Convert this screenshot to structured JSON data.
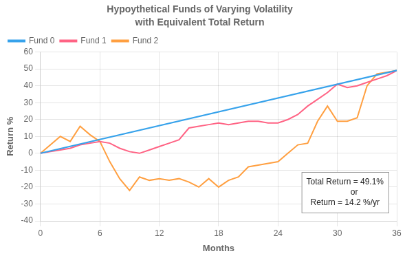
{
  "chart_data": {
    "type": "line",
    "title": "Hypoythetical Funds of Varying Volatility",
    "subtitle": "with Equivalent Total Return",
    "xlabel": "Months",
    "ylabel": "Return %",
    "xlim": [
      0,
      36
    ],
    "ylim": [
      -40,
      60
    ],
    "xticks": [
      0,
      6,
      12,
      18,
      24,
      30,
      36
    ],
    "yticks": [
      -40,
      -30,
      -20,
      -10,
      0,
      10,
      20,
      30,
      40,
      50,
      60
    ],
    "grid": true,
    "legend": "upper left",
    "series": [
      {
        "name": "Fund 0",
        "x": [
          0,
          36
        ],
        "values": [
          0,
          49.1
        ]
      },
      {
        "name": "Fund 1",
        "x": [
          0,
          1,
          2,
          3,
          4,
          5,
          6,
          7,
          8,
          9,
          10,
          11,
          12,
          13,
          14,
          15,
          16,
          17,
          18,
          19,
          20,
          21,
          22,
          23,
          24,
          25,
          26,
          27,
          28,
          29,
          30,
          31,
          32,
          33,
          34,
          35,
          36
        ],
        "values": [
          0,
          1,
          2,
          3,
          5,
          6,
          7,
          6,
          3,
          1,
          0,
          2,
          4,
          6,
          8,
          15,
          16,
          17,
          18,
          17,
          18,
          19,
          19,
          18,
          18,
          20,
          23,
          28,
          32,
          36,
          41,
          39,
          40,
          42,
          44,
          46,
          49
        ]
      },
      {
        "name": "Fund 2",
        "x": [
          0,
          1,
          2,
          3,
          4,
          5,
          6,
          7,
          8,
          9,
          10,
          11,
          12,
          13,
          14,
          15,
          16,
          17,
          18,
          19,
          20,
          21,
          22,
          23,
          24,
          25,
          26,
          27,
          28,
          29,
          30,
          31,
          32,
          33,
          34,
          35,
          36
        ],
        "values": [
          0,
          5,
          10,
          7,
          16,
          11,
          7,
          -5,
          -15,
          -22,
          -14,
          -16,
          -15,
          -16,
          -15,
          -17,
          -20,
          -15,
          -20,
          -16,
          -14,
          -8,
          -7,
          -6,
          -5,
          0,
          5,
          6,
          19,
          28,
          19,
          19,
          21,
          40,
          47,
          48,
          49
        ]
      }
    ],
    "annotation": "Total Return = 49.1%\n        or\nReturn = 14.2 %/yr"
  }
}
